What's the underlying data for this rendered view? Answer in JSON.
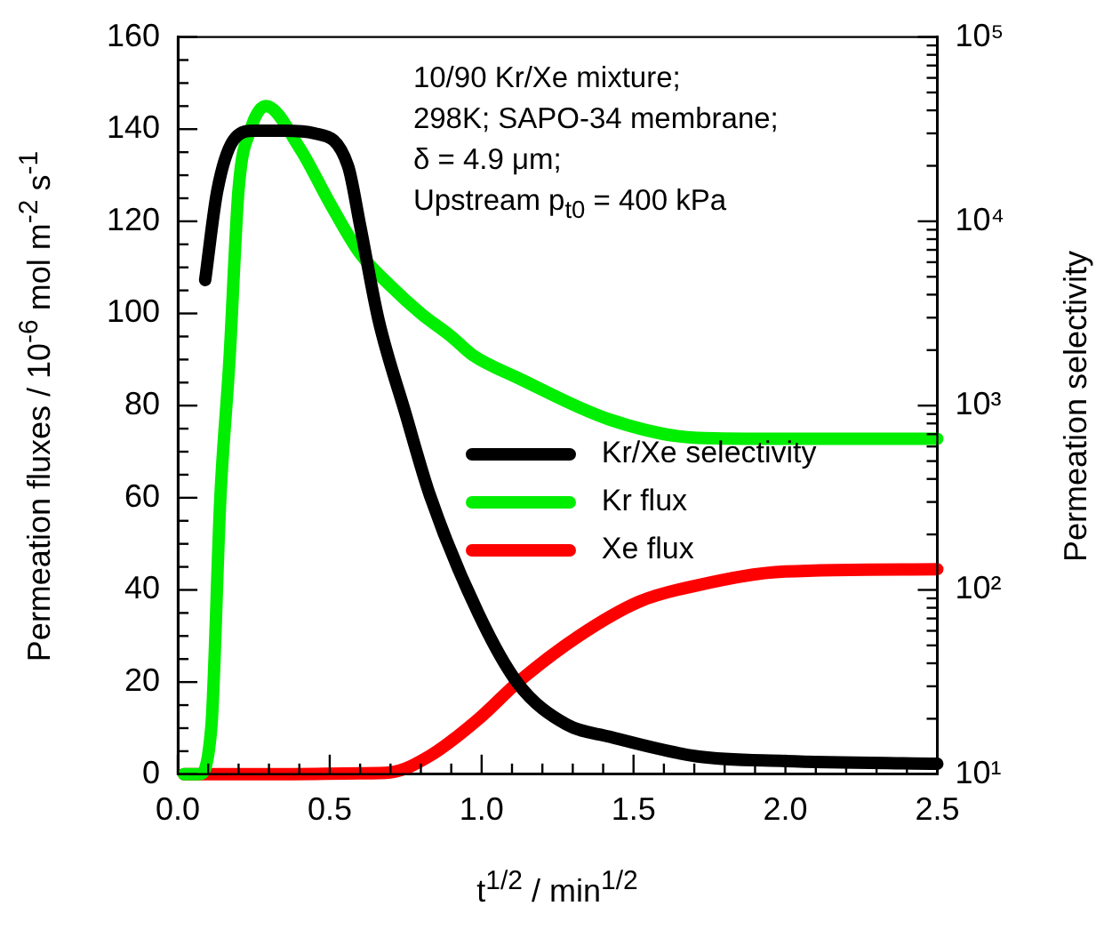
{
  "chart_data": {
    "type": "line",
    "xlabel": "t$^{1/2}$ / min$^{1/2}$",
    "ylabel": "Permeation fluxes / 10$^{-6}$ mol m$^{-2}$ s$^{-1}$",
    "y2label": "Permeation selectivity",
    "annotations": [
      "10/90 Kr/Xe mixture;",
      "298K; SAPO-34 membrane;",
      "δ = 4.9 μm;",
      "Upstream p$_{t0}$ = 400 kPa"
    ],
    "series": [
      {
        "name": "Kr/Xe selectivity",
        "color": "#000000",
        "axis": "y2",
        "x": [
          0.09,
          0.13,
          0.19,
          0.25,
          0.35,
          0.45,
          0.56,
          0.6,
          0.66,
          0.75,
          0.83,
          0.99,
          1.12,
          1.28,
          1.42,
          1.71,
          2.0,
          2.5
        ],
        "values": [
          4800,
          14700,
          28500,
          31000,
          31000,
          30000,
          20000,
          9500,
          2950,
          900,
          325,
          74,
          31,
          18.6,
          16,
          12.5,
          11.8,
          11.4
        ]
      },
      {
        "name": "Kr flux",
        "color": "#00ee00",
        "x": [
          0.02,
          0.07,
          0.11,
          0.14,
          0.17,
          0.2,
          0.24,
          0.29,
          0.4,
          0.5,
          0.6,
          0.7,
          0.8,
          0.9,
          0.97,
          1.12,
          1.42,
          1.71,
          2.0,
          2.5
        ],
        "values": [
          0,
          0,
          10,
          60,
          90,
          127,
          140,
          145,
          136,
          124,
          113,
          106,
          100,
          95,
          91,
          86,
          77,
          73,
          72.8,
          72.8
        ]
      },
      {
        "name": "Xe flux",
        "color": "#ff0000",
        "x": [
          0.02,
          0.3,
          0.6,
          0.7,
          0.83,
          0.99,
          1.12,
          1.32,
          1.52,
          1.71,
          2.0,
          2.5
        ],
        "values": [
          0,
          0,
          0.2,
          0.4,
          4,
          12,
          20,
          30,
          37.5,
          41,
          44,
          44.5
        ]
      }
    ],
    "xlim": [
      0,
      2.5
    ],
    "xticks": [
      {
        "value": 0,
        "label": "0.0"
      },
      {
        "value": 0.1,
        "label": null
      },
      {
        "value": 0.2,
        "label": null
      },
      {
        "value": 0.3,
        "label": null
      },
      {
        "value": 0.4,
        "label": null
      },
      {
        "value": 0.5,
        "label": "0.5"
      },
      {
        "value": 0.6,
        "label": null
      },
      {
        "value": 0.7,
        "label": null
      },
      {
        "value": 0.8,
        "label": null
      },
      {
        "value": 0.9,
        "label": null
      },
      {
        "value": 1,
        "label": "1.0"
      },
      {
        "value": 1.1,
        "label": null
      },
      {
        "value": 1.2,
        "label": null
      },
      {
        "value": 1.3,
        "label": null
      },
      {
        "value": 1.4,
        "label": null
      },
      {
        "value": 1.5,
        "label": "1.5"
      },
      {
        "value": 1.6,
        "label": null
      },
      {
        "value": 1.7,
        "label": null
      },
      {
        "value": 1.8,
        "label": null
      },
      {
        "value": 1.9,
        "label": null
      },
      {
        "value": 2,
        "label": "2.0"
      },
      {
        "value": 2.1,
        "label": null
      },
      {
        "value": 2.2,
        "label": null
      },
      {
        "value": 2.3,
        "label": null
      },
      {
        "value": 2.4,
        "label": null
      },
      {
        "value": 2.5,
        "label": "2.5"
      }
    ],
    "ylim": [
      0,
      160
    ],
    "yticks": [
      0,
      {
        "value": 5,
        "label": null
      },
      {
        "value": 10,
        "label": null
      },
      {
        "value": 15,
        "label": null
      },
      20,
      {
        "value": 25,
        "label": null
      },
      {
        "value": 30,
        "label": null
      },
      {
        "value": 35,
        "label": null
      },
      40,
      {
        "value": 45,
        "label": null
      },
      {
        "value": 50,
        "label": null
      },
      {
        "value": 55,
        "label": null
      },
      60,
      {
        "value": 65,
        "label": null
      },
      {
        "value": 70,
        "label": null
      },
      {
        "value": 75,
        "label": null
      },
      80,
      {
        "value": 85,
        "label": null
      },
      {
        "value": 90,
        "label": null
      },
      {
        "value": 95,
        "label": null
      },
      100,
      {
        "value": 105,
        "label": null
      },
      {
        "value": 110,
        "label": null
      },
      {
        "value": 115,
        "label": null
      },
      120,
      {
        "value": 125,
        "label": null
      },
      {
        "value": 130,
        "label": null
      },
      {
        "value": 135,
        "label": null
      },
      140,
      {
        "value": 145,
        "label": null
      },
      {
        "value": 150,
        "label": null
      },
      {
        "value": 155,
        "label": null
      },
      160
    ],
    "y2lim": [
      10,
      100000
    ],
    "y2ticks": [
      {
        "value": 10,
        "label": "10¹"
      },
      {
        "value": 20,
        "label": null
      },
      {
        "value": 30,
        "label": null
      },
      {
        "value": 40,
        "label": null
      },
      {
        "value": 50,
        "label": null
      },
      {
        "value": 60,
        "label": null
      },
      {
        "value": 70,
        "label": null
      },
      {
        "value": 80,
        "label": null
      },
      {
        "value": 90,
        "label": null
      },
      {
        "value": 100,
        "label": "10²"
      },
      {
        "value": 200,
        "label": null
      },
      {
        "value": 300,
        "label": null
      },
      {
        "value": 400,
        "label": null
      },
      {
        "value": 500,
        "label": null
      },
      {
        "value": 600,
        "label": null
      },
      {
        "value": 700,
        "label": null
      },
      {
        "value": 800,
        "label": null
      },
      {
        "value": 900,
        "label": null
      },
      {
        "value": 1000,
        "label": "10³"
      },
      {
        "value": 2000,
        "label": null
      },
      {
        "value": 3000,
        "label": null
      },
      {
        "value": 4000,
        "label": null
      },
      {
        "value": 5000,
        "label": null
      },
      {
        "value": 6000,
        "label": null
      },
      {
        "value": 7000,
        "label": null
      },
      {
        "value": 8000,
        "label": null
      },
      {
        "value": 9000,
        "label": null
      },
      {
        "value": 10000,
        "label": "10⁴"
      },
      {
        "value": 20000,
        "label": null
      },
      {
        "value": 30000,
        "label": null
      },
      {
        "value": 40000,
        "label": null
      },
      {
        "value": 50000,
        "label": null
      },
      {
        "value": 60000,
        "label": null
      },
      {
        "value": 70000,
        "label": null
      },
      {
        "value": 80000,
        "label": null
      },
      {
        "value": 90000,
        "label": null
      },
      {
        "value": 100000,
        "label": "10⁵"
      }
    ],
    "log": "y2",
    "grid": false,
    "legend": "right",
    "marker": "none",
    "line_style": "solid"
  }
}
